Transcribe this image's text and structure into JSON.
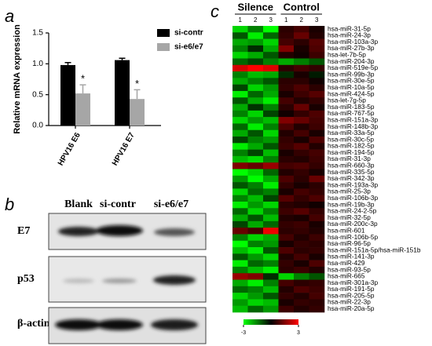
{
  "panel_labels": [
    "a",
    "b",
    "c"
  ],
  "blot": {
    "lanes": [
      "Blank",
      "si-contr",
      "si-e6/e7"
    ],
    "rows": [
      "E7",
      "p53",
      "β-actin"
    ]
  },
  "chart_data": [
    {
      "type": "bar",
      "ylabel": "Relative mRNA expression",
      "categories": [
        "HPV16 E6",
        "HPV16 E7"
      ],
      "series": [
        {
          "name": "si-contr",
          "color": "#000000",
          "values": [
            0.98,
            1.06
          ],
          "errors": [
            0.04,
            0.03
          ]
        },
        {
          "name": "si-e6/e7",
          "color": "#a6a6a6",
          "values": [
            0.52,
            0.43
          ],
          "errors": [
            0.14,
            0.15
          ]
        }
      ],
      "annotations": [
        "*",
        "*"
      ],
      "ylim": [
        0,
        1.5
      ],
      "yticks": [
        {
          "value": 0,
          "label": "0.0"
        },
        {
          "value": 0.5,
          "label": "0.5"
        },
        {
          "value": 1,
          "label": "1.0"
        },
        {
          "value": 1.5,
          "label": "1.5"
        }
      ],
      "legend": "top-right"
    },
    {
      "type": "heatmap",
      "groups": [
        "Silence",
        "Control"
      ],
      "columns": [
        "1",
        "2",
        "3",
        "1",
        "2",
        "3"
      ],
      "rows": [
        "hsa-miR-31-5p",
        "hsa-miR-24-3p",
        "hsa-miR-103a-3p",
        "hsa-miR-27b-3p",
        "hsa-let-7b-5p",
        "hsa-miR-204-3p",
        "hsa-miR-519e-5p",
        "hsa-miR-99b-3p",
        "hsa-miR-30e-5p",
        "hsa-miR-10a-5p",
        "hsa-miR-424-5p",
        "hsa-let-7g-5p",
        "hsa-miR-183-5p",
        "hsa-miR-767-5p",
        "hsa-miR-151a-3p",
        "hsa-miR-148b-3p",
        "hsa-miR-33a-5p",
        "hsa-miR-30c-5p",
        "hsa-miR-182-5p",
        "hsa-miR-194-5p",
        "hsa-miR-31-3p",
        "hsa-miR-660-3p",
        "hsa-miR-335-5p",
        "hsa-miR-342-3p",
        "hsa-miR-193a-3p",
        "hsa-miR-25-3p",
        "hsa-miR-106b-3p",
        "hsa-miR-19b-3p",
        "hsa-miR-24-2-5p",
        "hsa-miR-32-5p",
        "hsa-miR-200c-3p",
        "hsa-miR-601",
        "hsa-miR-106b-5p",
        "hsa-miR-96-5p",
        "hsa-miR-151a-5p/hsa-miR-151b",
        "hsa-miR-141-3p",
        "hsa-miR-429",
        "hsa-miR-93-5p",
        "hsa-miR-665",
        "hsa-miR-301a-3p",
        "hsa-miR-191-5p",
        "hsa-miR-205-5p",
        "hsa-miR-22-3p",
        "hsa-miR-20a-5p"
      ],
      "values": [
        [
          -2.5,
          -1.5,
          -3,
          0.5,
          0.8,
          0.3
        ],
        [
          -1,
          -2.8,
          -1.2,
          0.6,
          1.2,
          0.4
        ],
        [
          -2,
          -1.8,
          -2.5,
          0.8,
          0.5,
          1.0
        ],
        [
          -1.5,
          -0.5,
          -2,
          1.5,
          0.3,
          0.9
        ],
        [
          -2.5,
          -2,
          -1,
          0.4,
          0.2,
          0.7
        ],
        [
          -1.2,
          -0.8,
          -1.5,
          -2,
          -1.5,
          -1
        ],
        [
          2.5,
          3,
          2.6,
          0.5,
          0.8,
          0.6
        ],
        [
          -1.5,
          -2.2,
          -2,
          -0.5,
          0.3,
          -0.3
        ],
        [
          -2,
          -1.5,
          -1,
          0.5,
          0.5,
          0.2
        ],
        [
          -0.8,
          -2.5,
          -1.8,
          0.6,
          0.9,
          0.5
        ],
        [
          -2.8,
          -1.2,
          -2,
          0.3,
          0.7,
          1.0
        ],
        [
          -1,
          -2,
          -2.8,
          0.8,
          0.4,
          0.6
        ],
        [
          -2,
          -0.6,
          -1.5,
          0.5,
          1.2,
          0.3
        ],
        [
          -1.5,
          -2.5,
          -0.8,
          0.2,
          0.6,
          0.9
        ],
        [
          -2.5,
          -1.8,
          -2.2,
          1.5,
          1.2,
          0.8
        ],
        [
          -1.2,
          -2.8,
          -1.5,
          0.9,
          0.4,
          0.7
        ],
        [
          -2,
          -1,
          -2.5,
          0.4,
          0.8,
          0.3
        ],
        [
          -0.8,
          -1.5,
          -1.8,
          0.6,
          0.3,
          0.9
        ],
        [
          -2.8,
          -2,
          -1,
          0.7,
          1.0,
          0.4
        ],
        [
          -1.5,
          -0.8,
          -2.2,
          0.3,
          0.6,
          0.8
        ],
        [
          -2.2,
          -2.6,
          -1.5,
          0.5,
          0.4,
          0.7
        ],
        [
          1.5,
          1.2,
          1.8,
          0.8,
          0.9,
          0.6
        ],
        [
          -3,
          -2.5,
          -1.2,
          0.4,
          0.6,
          0.3
        ],
        [
          -1.8,
          -3,
          -2,
          0.9,
          0.5,
          1.2
        ],
        [
          -1,
          -1.5,
          -2.8,
          0.6,
          0.3,
          0.5
        ],
        [
          -2.5,
          -1.2,
          -1.5,
          0.3,
          0.8,
          0.6
        ],
        [
          -1.5,
          -2.2,
          -0.8,
          1.0,
          0.6,
          0.9
        ],
        [
          -2.8,
          -1.8,
          -2.5,
          0.5,
          0.4,
          0.2
        ],
        [
          -1.2,
          -2.5,
          -1.5,
          0.7,
          1.0,
          0.6
        ],
        [
          -2,
          -1,
          -2.2,
          0.4,
          0.3,
          0.8
        ],
        [
          -0.8,
          -2,
          -1.2,
          0.6,
          0.7,
          0.3
        ],
        [
          1.2,
          0.8,
          2.8,
          0.5,
          0.6,
          0.4
        ],
        [
          -1.5,
          -2.5,
          -2,
          0.8,
          0.4,
          0.7
        ],
        [
          -3,
          -1.5,
          -1.8,
          0.3,
          0.6,
          0.5
        ],
        [
          -2.2,
          -2.8,
          -1,
          0.9,
          0.5,
          0.6
        ],
        [
          -1,
          -1.8,
          -2.5,
          0.4,
          0.8,
          0.3
        ],
        [
          -2.8,
          -1.2,
          -1.5,
          0.6,
          0.3,
          0.9
        ],
        [
          -1.5,
          -2.2,
          -2.8,
          0.5,
          0.7,
          0.4
        ],
        [
          1.8,
          1.5,
          -0.5,
          -2.5,
          -1.5,
          -1
        ],
        [
          -2,
          -2.8,
          -1.5,
          0.8,
          0.5,
          0.6
        ],
        [
          -1.2,
          -1.5,
          -2.2,
          0.4,
          0.9,
          0.7
        ],
        [
          -2.5,
          -1.8,
          -1,
          0.6,
          0.4,
          0.8
        ],
        [
          -1.8,
          -2.5,
          -2.2,
          0.3,
          0.6,
          0.5
        ],
        [
          -2.2,
          -1.2,
          -1.8,
          0.7,
          0.4,
          0.6
        ]
      ],
      "zlim": [
        -3,
        3
      ],
      "zticks": [
        -3,
        3
      ],
      "colors": [
        "#00ff00",
        "#000000",
        "#ff0000"
      ]
    }
  ]
}
